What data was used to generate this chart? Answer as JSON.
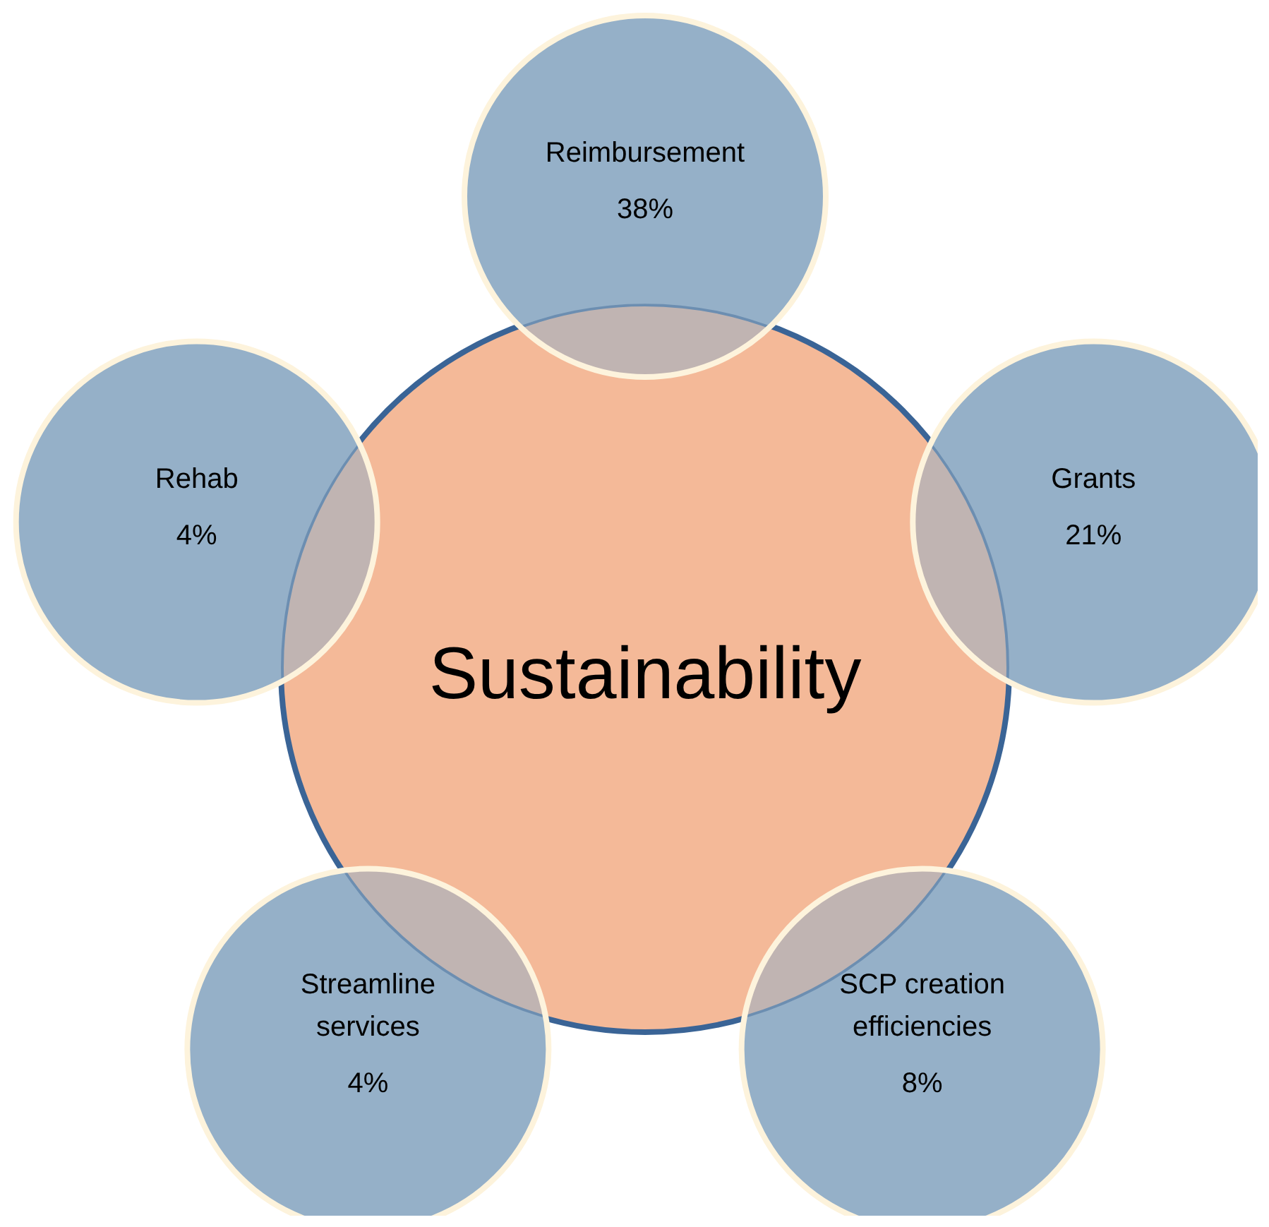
{
  "chart_data": {
    "type": "other",
    "title": "Sustainability",
    "categories": [
      "Reimbursement",
      "Grants",
      "SCP creation efficiencies",
      "Streamline services",
      "Rehab"
    ],
    "values": [
      38,
      21,
      8,
      4,
      4
    ],
    "value_labels": [
      "38%",
      "21%",
      "8%",
      "4%",
      "4%"
    ],
    "color": "#f4b998",
    "colors": [
      "#95b0c8",
      "#95b0c8",
      "#95b0c8",
      "#95b0c8",
      "#95b0c8"
    ]
  }
}
